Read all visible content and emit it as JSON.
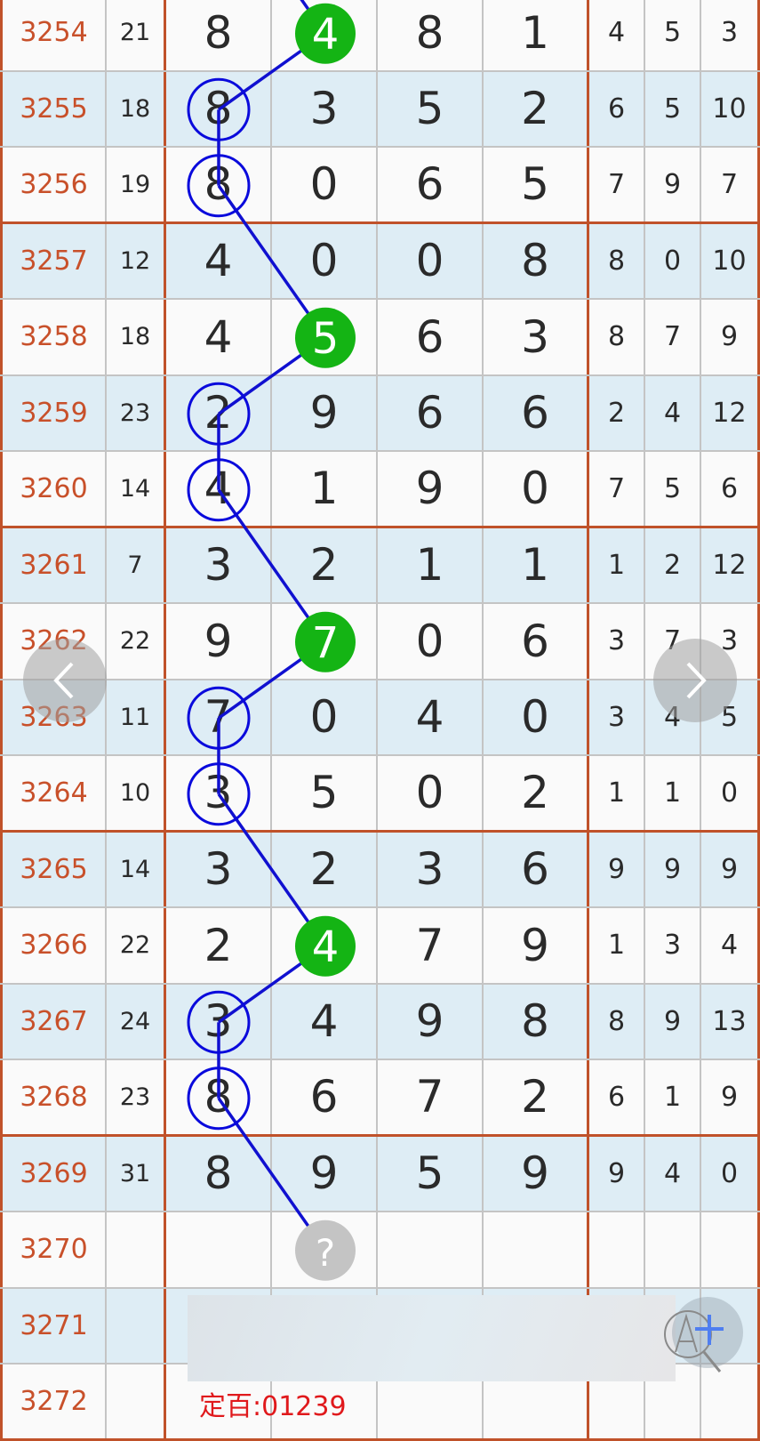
{
  "rows": [
    {
      "period": "3254",
      "sum": "21",
      "digits": [
        "8",
        "4",
        "8",
        "1"
      ],
      "extra": [
        "4",
        "5",
        "3"
      ],
      "mark": "green",
      "mark_col": 1
    },
    {
      "period": "3255",
      "sum": "18",
      "digits": [
        "8",
        "3",
        "5",
        "2"
      ],
      "extra": [
        "6",
        "5",
        "10"
      ],
      "mark": "ring",
      "mark_col": 0
    },
    {
      "period": "3256",
      "sum": "19",
      "digits": [
        "8",
        "0",
        "6",
        "5"
      ],
      "extra": [
        "7",
        "9",
        "7"
      ],
      "mark": "ring",
      "mark_col": 0
    },
    {
      "period": "3257",
      "sum": "12",
      "digits": [
        "4",
        "0",
        "0",
        "8"
      ],
      "extra": [
        "8",
        "0",
        "10"
      ],
      "mark": null,
      "mark_col": null
    },
    {
      "period": "3258",
      "sum": "18",
      "digits": [
        "4",
        "5",
        "6",
        "3"
      ],
      "extra": [
        "8",
        "7",
        "9"
      ],
      "mark": "green",
      "mark_col": 1
    },
    {
      "period": "3259",
      "sum": "23",
      "digits": [
        "2",
        "9",
        "6",
        "6"
      ],
      "extra": [
        "2",
        "4",
        "12"
      ],
      "mark": "ring",
      "mark_col": 0
    },
    {
      "period": "3260",
      "sum": "14",
      "digits": [
        "4",
        "1",
        "9",
        "0"
      ],
      "extra": [
        "7",
        "5",
        "6"
      ],
      "mark": "ring",
      "mark_col": 0
    },
    {
      "period": "3261",
      "sum": "7",
      "digits": [
        "3",
        "2",
        "1",
        "1"
      ],
      "extra": [
        "1",
        "2",
        "12"
      ],
      "mark": null,
      "mark_col": null
    },
    {
      "period": "3262",
      "sum": "22",
      "digits": [
        "9",
        "7",
        "0",
        "6"
      ],
      "extra": [
        "3",
        "7",
        "3"
      ],
      "mark": "green",
      "mark_col": 1
    },
    {
      "period": "3263",
      "sum": "11",
      "digits": [
        "7",
        "0",
        "4",
        "0"
      ],
      "extra": [
        "3",
        "4",
        "5"
      ],
      "mark": "ring",
      "mark_col": 0
    },
    {
      "period": "3264",
      "sum": "10",
      "digits": [
        "3",
        "5",
        "0",
        "2"
      ],
      "extra": [
        "1",
        "1",
        "0"
      ],
      "mark": "ring",
      "mark_col": 0
    },
    {
      "period": "3265",
      "sum": "14",
      "digits": [
        "3",
        "2",
        "3",
        "6"
      ],
      "extra": [
        "9",
        "9",
        "9"
      ],
      "mark": null,
      "mark_col": null
    },
    {
      "period": "3266",
      "sum": "22",
      "digits": [
        "2",
        "4",
        "7",
        "9"
      ],
      "extra": [
        "1",
        "3",
        "4"
      ],
      "mark": "green",
      "mark_col": 1
    },
    {
      "period": "3267",
      "sum": "24",
      "digits": [
        "3",
        "4",
        "9",
        "8"
      ],
      "extra": [
        "8",
        "9",
        "13"
      ],
      "mark": "ring",
      "mark_col": 0
    },
    {
      "period": "3268",
      "sum": "23",
      "digits": [
        "8",
        "6",
        "7",
        "2"
      ],
      "extra": [
        "6",
        "1",
        "9"
      ],
      "mark": "ring",
      "mark_col": 0
    },
    {
      "period": "3269",
      "sum": "31",
      "digits": [
        "8",
        "9",
        "5",
        "9"
      ],
      "extra": [
        "9",
        "4",
        "0"
      ],
      "mark": null,
      "mark_col": null
    },
    {
      "period": "3270",
      "sum": "",
      "digits": [
        "",
        "?",
        "",
        ""
      ],
      "extra": [
        "",
        "",
        ""
      ],
      "mark": "unknown",
      "mark_col": 1
    },
    {
      "period": "3271",
      "sum": "",
      "digits": [
        "",
        "",
        "",
        ""
      ],
      "extra": [
        "",
        "",
        ""
      ],
      "mark": null,
      "mark_col": null
    },
    {
      "period": "3272",
      "sum": "",
      "digits": [
        "",
        "",
        "",
        ""
      ],
      "extra": [
        "",
        "",
        ""
      ],
      "mark": null,
      "mark_col": null
    }
  ],
  "prediction_note": "定百:01239",
  "icons": {
    "prev": "chevron-left-icon",
    "next": "chevron-right-icon",
    "zoom": "zoom-text-icon"
  },
  "colors": {
    "period_text": "#c8502a",
    "divider": "#c0522a",
    "alt_row": "#deedf5",
    "ring": "#0a0adc",
    "green_ball": "#14b414",
    "unknown_ball": "#c4c4c4",
    "note": "#e0191c",
    "link_line": "#1010d0"
  }
}
